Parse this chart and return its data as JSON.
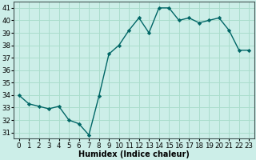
{
  "x": [
    0,
    1,
    2,
    3,
    4,
    5,
    6,
    7,
    8,
    9,
    10,
    11,
    12,
    13,
    14,
    15,
    16,
    17,
    18,
    19,
    20,
    21,
    22,
    23
  ],
  "y": [
    34.0,
    33.3,
    33.1,
    32.9,
    33.1,
    32.0,
    31.7,
    30.8,
    33.9,
    37.3,
    38.0,
    39.2,
    40.2,
    39.0,
    41.0,
    41.0,
    40.0,
    40.2,
    39.8,
    40.0,
    40.2,
    39.2,
    37.6,
    37.6
  ],
  "xlabel": "Humidex (Indice chaleur)",
  "ylabel": "",
  "xlim": [
    -0.5,
    23.5
  ],
  "ylim": [
    30.5,
    41.5
  ],
  "yticks": [
    31,
    32,
    33,
    34,
    35,
    36,
    37,
    38,
    39,
    40,
    41
  ],
  "xticks": [
    0,
    1,
    2,
    3,
    4,
    5,
    6,
    7,
    8,
    9,
    10,
    11,
    12,
    13,
    14,
    15,
    16,
    17,
    18,
    19,
    20,
    21,
    22,
    23
  ],
  "line_color": "#006666",
  "marker_color": "#006666",
  "bg_color": "#cceee8",
  "grid_color": "#aaddcc",
  "label_fontsize": 7.0,
  "tick_fontsize": 6.2
}
